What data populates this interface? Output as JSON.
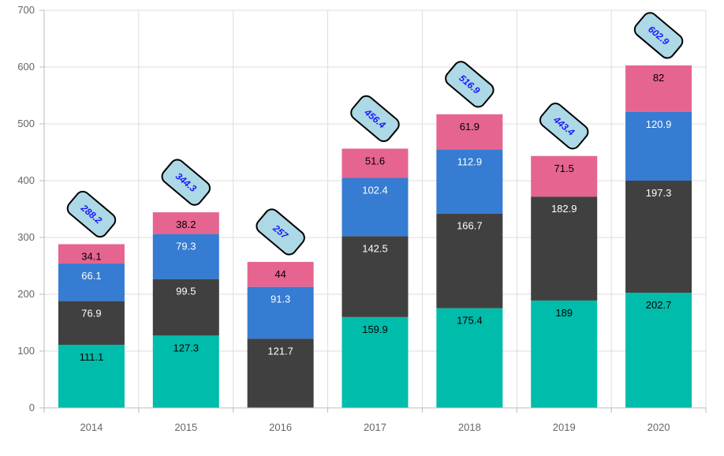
{
  "chart_data": {
    "type": "bar",
    "stacked": true,
    "categories": [
      "2014",
      "2015",
      "2016",
      "2017",
      "2018",
      "2019",
      "2020"
    ],
    "ylim": [
      0,
      700
    ],
    "yticks": [
      0,
      100,
      200,
      300,
      400,
      500,
      600,
      700
    ],
    "grid": true,
    "series": [
      {
        "color": "#00bcaa",
        "text_color": "#000000",
        "values": [
          111.1,
          127.3,
          0,
          159.9,
          175.4,
          189,
          202.7
        ],
        "labels": [
          "111.1",
          "127.3",
          "",
          "159.9",
          "175.4",
          "189",
          "202.7"
        ]
      },
      {
        "color": "#404040",
        "text_color": "#ffffff",
        "values": [
          76.9,
          99.5,
          121.7,
          142.5,
          166.7,
          182.9,
          197.3
        ],
        "labels": [
          "76.9",
          "99.5",
          "121.7",
          "142.5",
          "166.7",
          "182.9",
          "197.3"
        ]
      },
      {
        "color": "#357cd2",
        "text_color": "#ffffff",
        "values": [
          66.1,
          79.3,
          91.3,
          102.4,
          112.9,
          0,
          120.9
        ],
        "labels": [
          "66.1",
          "79.3",
          "91.3",
          "102.4",
          "112.9",
          "",
          "120.9"
        ]
      },
      {
        "color": "#e56590",
        "text_color": "#000000",
        "values": [
          34.1,
          38.2,
          44,
          51.6,
          61.9,
          71.5,
          82
        ],
        "labels": [
          "34.1",
          "38.2",
          "44",
          "51.6",
          "61.9",
          "71.5",
          "82"
        ]
      }
    ],
    "totals": [
      "288.2",
      "344.3",
      "257",
      "456.4",
      "516.9",
      "443.4",
      "602.9"
    ],
    "total_label_style": {
      "fill": "#add8e6",
      "border": "#000000",
      "text_color": "#1a1aff"
    }
  }
}
